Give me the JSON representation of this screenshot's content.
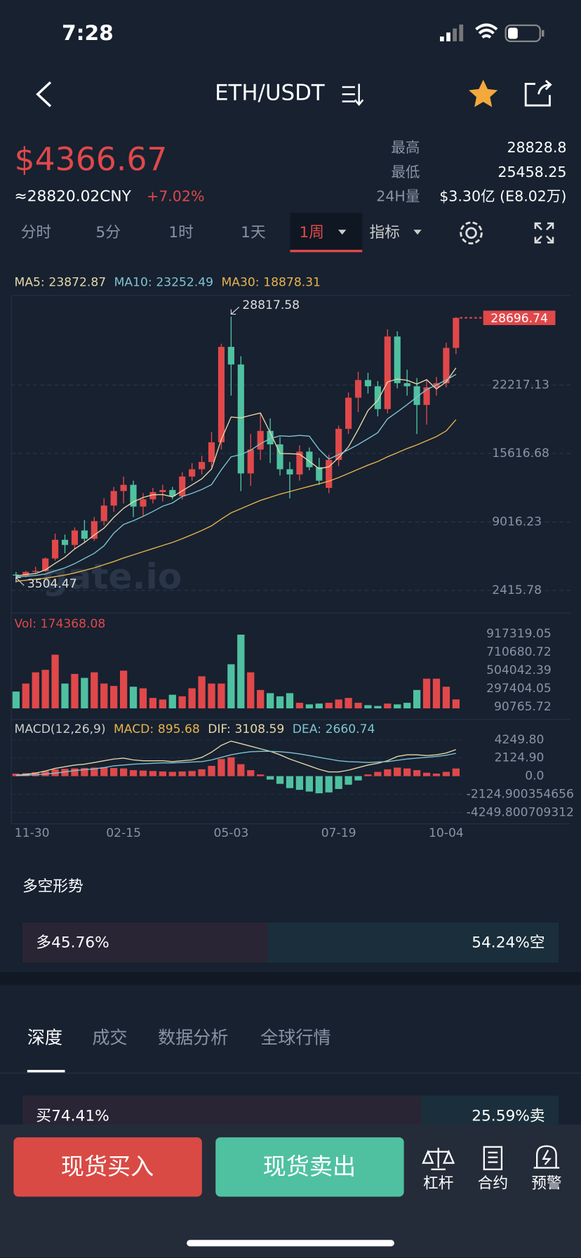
{
  "status": {
    "time": "7:28"
  },
  "nav": {
    "title": "ETH/USDT"
  },
  "ticker": {
    "price": "$4366.67",
    "cny": "≈28820.02CNY",
    "change": "+7.02%",
    "stats": [
      {
        "label": "最高",
        "value": "28828.8"
      },
      {
        "label": "最低",
        "value": "25458.25"
      },
      {
        "label": "24H量",
        "value": "$3.30亿 (E8.02万)"
      }
    ]
  },
  "intervals": [
    "分时",
    "5分",
    "1时",
    "1天",
    "1周"
  ],
  "indicator": "指标",
  "watermark": "gate.io",
  "chart_data": [
    {
      "type": "candlestick",
      "up_color": "#e0484a",
      "down_color": "#4fc1a0",
      "categories": [
        "11-30",
        null,
        null,
        null,
        null,
        null,
        null,
        null,
        null,
        null,
        null,
        "02-15",
        null,
        null,
        null,
        null,
        null,
        null,
        null,
        null,
        null,
        null,
        "05-03",
        null,
        null,
        null,
        null,
        null,
        null,
        null,
        null,
        null,
        null,
        "07-19",
        null,
        null,
        null,
        null,
        null,
        null,
        null,
        null,
        null,
        null,
        "10-04",
        null
      ],
      "open": [
        3950,
        3850,
        4200,
        4300,
        5500,
        7300,
        6800,
        8200,
        7400,
        9100,
        10600,
        12000,
        12600,
        10500,
        11200,
        11900,
        12100,
        11500,
        13400,
        14100,
        14800,
        16700,
        25900,
        24200,
        13700,
        16000,
        17800,
        16500,
        14100,
        13600,
        15800,
        14300,
        12300,
        15000,
        18000,
        21000,
        22700,
        22100,
        19900,
        26900,
        22400,
        22100,
        20300,
        22000,
        22400,
        25800
      ],
      "high": [
        4200,
        4300,
        4700,
        5600,
        7900,
        7800,
        8500,
        9200,
        9500,
        11300,
        12400,
        13400,
        13000,
        11800,
        12300,
        12600,
        12400,
        13800,
        14700,
        15400,
        17700,
        26200,
        28817.58,
        25000,
        17500,
        19500,
        19000,
        17200,
        14800,
        16400,
        16200,
        15200,
        15500,
        18300,
        21500,
        23500,
        23400,
        22600,
        27600,
        27400,
        23700,
        22900,
        22800,
        23000,
        26300,
        28760
      ],
      "low": [
        3504.47,
        3700,
        4000,
        4200,
        5300,
        6000,
        6400,
        7000,
        7200,
        8700,
        10000,
        10800,
        9500,
        9600,
        10800,
        11000,
        11200,
        11200,
        13000,
        13600,
        14200,
        16000,
        21200,
        12000,
        12500,
        15000,
        14700,
        13500,
        11300,
        13000,
        14000,
        12600,
        11800,
        14400,
        17500,
        19600,
        21400,
        19200,
        19500,
        21900,
        21200,
        17500,
        18400,
        21200,
        22000,
        25200
      ],
      "close": [
        3850,
        4200,
        4300,
        5500,
        7300,
        6800,
        8200,
        7400,
        9100,
        10600,
        12000,
        12600,
        10500,
        11200,
        11900,
        12100,
        11500,
        13400,
        14100,
        14800,
        16700,
        25900,
        24200,
        13700,
        16000,
        17800,
        16500,
        14100,
        13600,
        15800,
        14300,
        13000,
        15000,
        18000,
        21000,
        22700,
        22100,
        19900,
        26900,
        22400,
        22100,
        20300,
        22000,
        22400,
        25800,
        28696.74
      ],
      "series": [
        {
          "name": "MA5:",
          "color": "#e6d7a6",
          "values": [
            3800,
            3950,
            4050,
            4400,
            5030,
            5620,
            6420,
            7040,
            7760,
            8420,
            9460,
            10340,
            10960,
            11380,
            11640,
            11660,
            11440,
            12020,
            12600,
            13180,
            14120,
            16980,
            19140,
            19060,
            19300,
            19520,
            17640,
            15620,
            15600,
            15560,
            14860,
            14160,
            14340,
            15220,
            16260,
            17940,
            19760,
            20740,
            22520,
            22800,
            22680,
            22320,
            22740,
            21840,
            22520,
            23872.87
          ]
        },
        {
          "name": "MA10:",
          "color": "#7fc4cf",
          "values": [
            3700,
            3780,
            3860,
            4000,
            4300,
            4600,
            5000,
            5500,
            6000,
            6720,
            7940,
            8780,
            9140,
            9560,
            10030,
            10530,
            10860,
            11480,
            11780,
            12150,
            12620,
            14050,
            15300,
            15520,
            15940,
            16560,
            17060,
            17320,
            17270,
            17370,
            17290,
            16010,
            15090,
            15520,
            15980,
            16490,
            17050,
            17630,
            18960,
            19620,
            20330,
            21060,
            21790,
            22230,
            22710,
            23252.49
          ]
        },
        {
          "name": "MA30:",
          "color": "#e8b34b",
          "values": [
            3300,
            3400,
            3500,
            3600,
            3750,
            3900,
            4100,
            4350,
            4600,
            4900,
            5200,
            5550,
            5850,
            6150,
            6450,
            6750,
            7050,
            7400,
            7800,
            8200,
            8650,
            9300,
            9900,
            10300,
            10700,
            11100,
            11400,
            11700,
            11950,
            12200,
            12450,
            12700,
            12950,
            13300,
            13700,
            14100,
            14500,
            14850,
            15300,
            15700,
            16100,
            16450,
            16850,
            17250,
            17800,
            18878.31
          ]
        }
      ],
      "ylim": [
        400,
        30700
      ],
      "yticks": [
        2415.78,
        9016.23,
        15616.68,
        22217.13
      ],
      "grid": true
    },
    {
      "type": "bar",
      "title": "Vol:",
      "values": [
        263000,
        354000,
        481000,
        509000,
        681000,
        354000,
        463000,
        418000,
        481000,
        354000,
        327000,
        500000,
        318000,
        300000,
        191000,
        173000,
        227000,
        209000,
        300000,
        436000,
        354000,
        354000,
        572000,
        908000,
        481000,
        281000,
        245000,
        209000,
        245000,
        136000,
        118000,
        127000,
        136000,
        173000,
        191000,
        136000,
        109000,
        100000,
        127000,
        118000,
        136000,
        281000,
        409000,
        409000,
        318000,
        174368.08
      ],
      "ylim": [
        72600,
        990000
      ],
      "yticks": [
        90765.72,
        297404.05,
        504042.39,
        710680.72,
        917319.05
      ]
    },
    {
      "type": "macd",
      "title": "MACD(12,26,9)",
      "up_color": "#e0484a",
      "down_color": "#4fc1a0",
      "series": [
        {
          "name": "MACD:",
          "color": "#e8b34b",
          "values": [
            300,
            350,
            450,
            600,
            800,
            850,
            900,
            950,
            1000,
            1050,
            950,
            900,
            700,
            650,
            600,
            550,
            500,
            550,
            600,
            800,
            1200,
            2000,
            2200,
            1400,
            700,
            200,
            -400,
            -900,
            -1400,
            -1600,
            -1800,
            -2000,
            -1900,
            -1500,
            -1000,
            -500,
            200,
            500,
            800,
            1000,
            900,
            700,
            400,
            300,
            500,
            895.68
          ]
        },
        {
          "name": "DIF:",
          "color": "#e6d7a6",
          "values": [
            100,
            200,
            350,
            600,
            900,
            1100,
            1300,
            1400,
            1600,
            1800,
            2000,
            2100,
            1900,
            1800,
            1800,
            1800,
            1700,
            1800,
            1900,
            2200,
            2800,
            3600,
            4100,
            3800,
            3500,
            3200,
            2900,
            2500,
            2000,
            1600,
            1200,
            800,
            500,
            500,
            700,
            1000,
            1300,
            1500,
            1800,
            2300,
            2500,
            2500,
            2400,
            2500,
            2700,
            3108.59
          ]
        },
        {
          "name": "DEA:",
          "color": "#7fc4cf",
          "values": [
            50,
            100,
            150,
            250,
            350,
            500,
            650,
            750,
            850,
            1000,
            1200,
            1300,
            1400,
            1450,
            1500,
            1550,
            1550,
            1600,
            1650,
            1700,
            1900,
            2200,
            2500,
            2700,
            2850,
            2900,
            2900,
            2850,
            2750,
            2600,
            2400,
            2200,
            2000,
            1800,
            1700,
            1650,
            1600,
            1650,
            1700,
            1850,
            2000,
            2100,
            2200,
            2300,
            2450,
            2660.74
          ]
        }
      ],
      "ylim": [
        -5383,
        6327
      ],
      "yticks": [
        {
          "value": 4249.8,
          "label": "4249.80"
        },
        {
          "value": 2124.9,
          "label": "2124.90"
        },
        {
          "value": 0,
          "label": "0.0"
        },
        {
          "value": -2124.900354656,
          "label": "-2124.900354656"
        },
        {
          "value": -4249.800709312,
          "label": "-4249.800709312"
        }
      ]
    }
  ],
  "sentiment": {
    "title": "多空形势",
    "values": [
      45.76,
      54.24
    ],
    "value_labels": [
      "多45.76%",
      "54.24%空"
    ],
    "colors": [
      "#2a2535",
      "#1a2f3b"
    ]
  },
  "tabs": [
    "深度",
    "成交",
    "数据分析",
    "全球行情"
  ],
  "depth": {
    "values": [
      74.41,
      25.59
    ],
    "value_labels": [
      "买74.41%",
      "25.59%卖"
    ],
    "colors": [
      "#2a2535",
      "#1a2f3b"
    ]
  },
  "actions": {
    "buy": "现货买入",
    "sell": "现货卖出",
    "tools": [
      "杠杆",
      "合约",
      "预警"
    ]
  }
}
